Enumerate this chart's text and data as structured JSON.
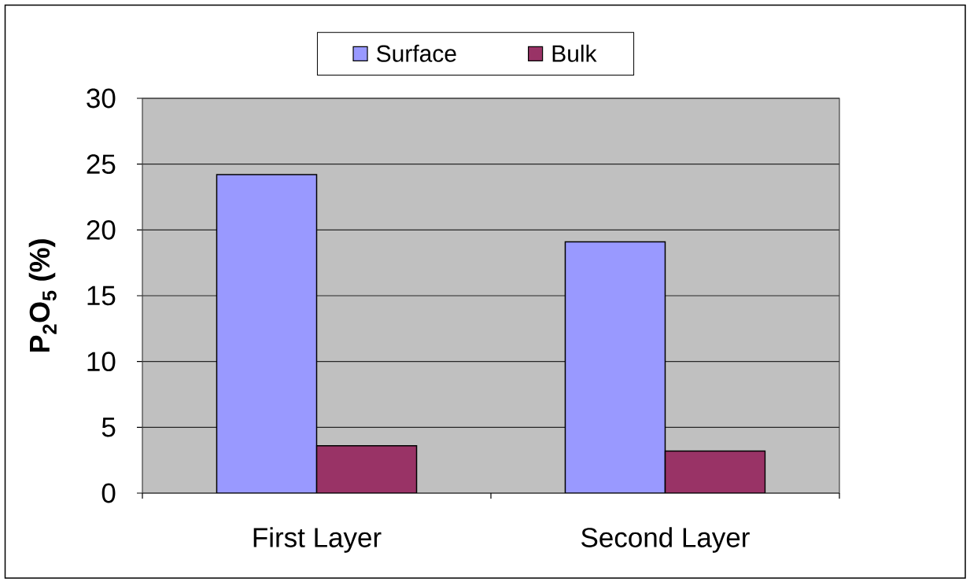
{
  "chart_data": {
    "type": "bar",
    "categories": [
      "First Layer",
      "Second Layer"
    ],
    "series": [
      {
        "name": "Surface",
        "color": "#9999ff",
        "values": [
          24.2,
          19.1
        ]
      },
      {
        "name": "Bulk",
        "color": "#993366",
        "values": [
          3.6,
          3.2
        ]
      }
    ],
    "ylabel": "P$_{2}$O$_{5}$ (%)",
    "ylim": [
      0,
      30
    ],
    "yticks": [
      0,
      5,
      10,
      15,
      20,
      25,
      30
    ],
    "grid": "y",
    "legend": "top"
  }
}
